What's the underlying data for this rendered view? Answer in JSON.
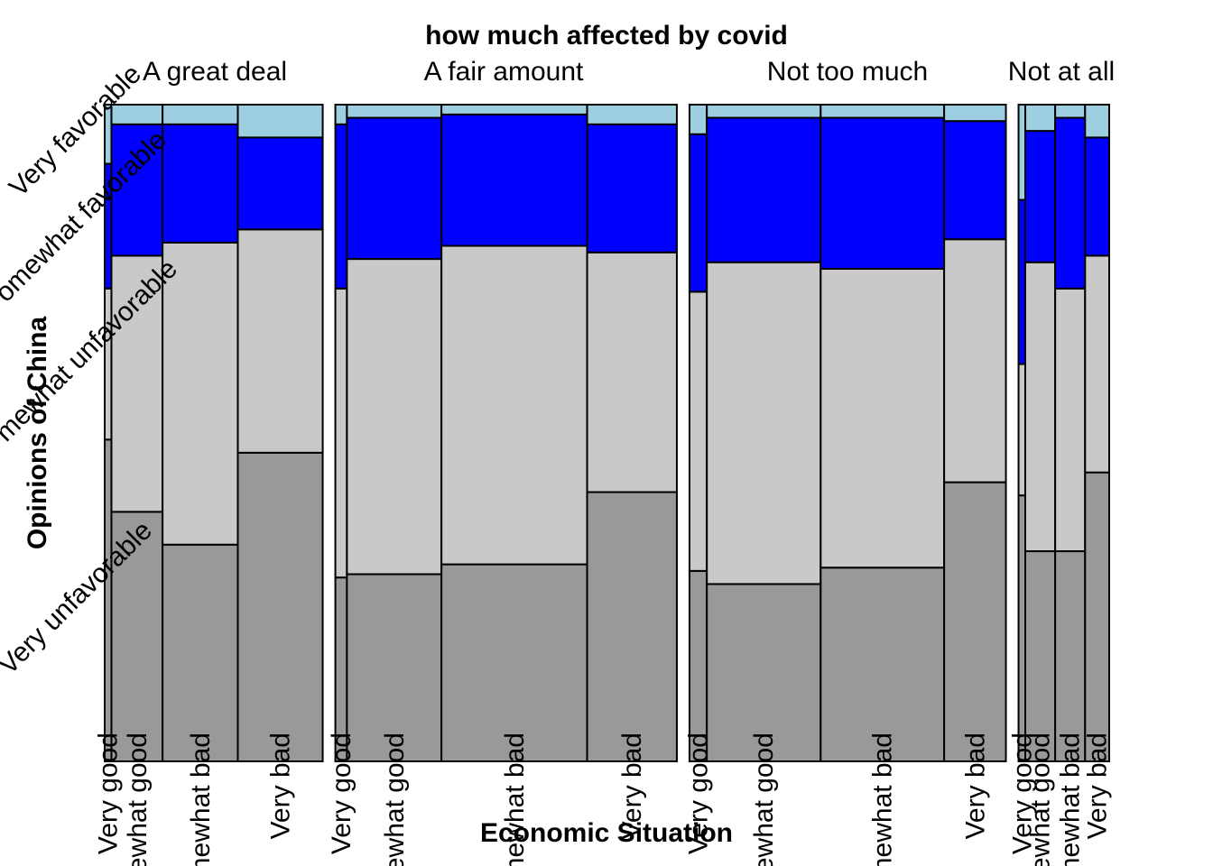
{
  "chart_data": {
    "type": "mosaic",
    "title": "how much affected by covid",
    "xlabel": "Economic Situation",
    "ylabel": "Opinions of China",
    "groups": [
      "A great deal",
      "A fair amount",
      "Not too much",
      "Not at all"
    ],
    "categories": [
      "Very good",
      "Somewhat good",
      "Somewhat bad",
      "Very bad"
    ],
    "categories_display": [
      "Very good",
      "mewhat good",
      "omewhat bad",
      "Very bad"
    ],
    "levels": [
      "Very unfavorable",
      "Somewhat unfavorable",
      "Somewhat favorable",
      "Very favorable"
    ],
    "levels_display": [
      "Very unfavorable",
      "mewhat unfavorable",
      "omewhat favorable",
      "Very favorable"
    ],
    "colors": {
      "Very unfavorable": "#999999",
      "Somewhat unfavorable": "#C9C9C9",
      "Somewhat favorable": "#0000FF",
      "Very favorable": "#9ECFE0"
    },
    "cells": [
      {
        "group": "A great deal",
        "category": "Very good",
        "width": 0.007,
        "proportions": [
          0.49,
          0.23,
          0.19,
          0.09
        ]
      },
      {
        "group": "A great deal",
        "category": "Somewhat good",
        "width": 0.053,
        "proportions": [
          0.38,
          0.39,
          0.2,
          0.03
        ]
      },
      {
        "group": "A great deal",
        "category": "Somewhat bad",
        "width": 0.078,
        "proportions": [
          0.33,
          0.46,
          0.18,
          0.03
        ]
      },
      {
        "group": "A great deal",
        "category": "Very bad",
        "width": 0.088,
        "proportions": [
          0.47,
          0.34,
          0.14,
          0.05
        ]
      },
      {
        "group": "A fair amount",
        "category": "Very good",
        "width": 0.012,
        "proportions": [
          0.28,
          0.44,
          0.25,
          0.03
        ]
      },
      {
        "group": "A fair amount",
        "category": "Somewhat good",
        "width": 0.098,
        "proportions": [
          0.285,
          0.48,
          0.215,
          0.02
        ]
      },
      {
        "group": "A fair amount",
        "category": "Somewhat bad",
        "width": 0.151,
        "proportions": [
          0.3,
          0.485,
          0.2,
          0.015
        ]
      },
      {
        "group": "A fair amount",
        "category": "Very bad",
        "width": 0.093,
        "proportions": [
          0.41,
          0.365,
          0.195,
          0.03
        ]
      },
      {
        "group": "Not too much",
        "category": "Very good",
        "width": 0.018,
        "proportions": [
          0.29,
          0.425,
          0.24,
          0.045
        ]
      },
      {
        "group": "Not too much",
        "category": "Somewhat good",
        "width": 0.118,
        "proportions": [
          0.27,
          0.49,
          0.22,
          0.02
        ]
      },
      {
        "group": "Not too much",
        "category": "Somewhat bad",
        "width": 0.128,
        "proportions": [
          0.295,
          0.455,
          0.23,
          0.02
        ]
      },
      {
        "group": "Not too much",
        "category": "Very bad",
        "width": 0.064,
        "proportions": [
          0.425,
          0.37,
          0.18,
          0.025
        ]
      },
      {
        "group": "Not at all",
        "category": "Very good",
        "width": 0.007,
        "proportions": [
          0.405,
          0.2,
          0.25,
          0.145
        ]
      },
      {
        "group": "Not at all",
        "category": "Somewhat good",
        "width": 0.031,
        "proportions": [
          0.32,
          0.44,
          0.2,
          0.04
        ]
      },
      {
        "group": "Not at all",
        "category": "Somewhat bad",
        "width": 0.031,
        "proportions": [
          0.32,
          0.4,
          0.26,
          0.02
        ]
      },
      {
        "group": "Not at all",
        "category": "Very bad",
        "width": 0.025,
        "proportions": [
          0.44,
          0.33,
          0.18,
          0.05
        ]
      }
    ]
  }
}
